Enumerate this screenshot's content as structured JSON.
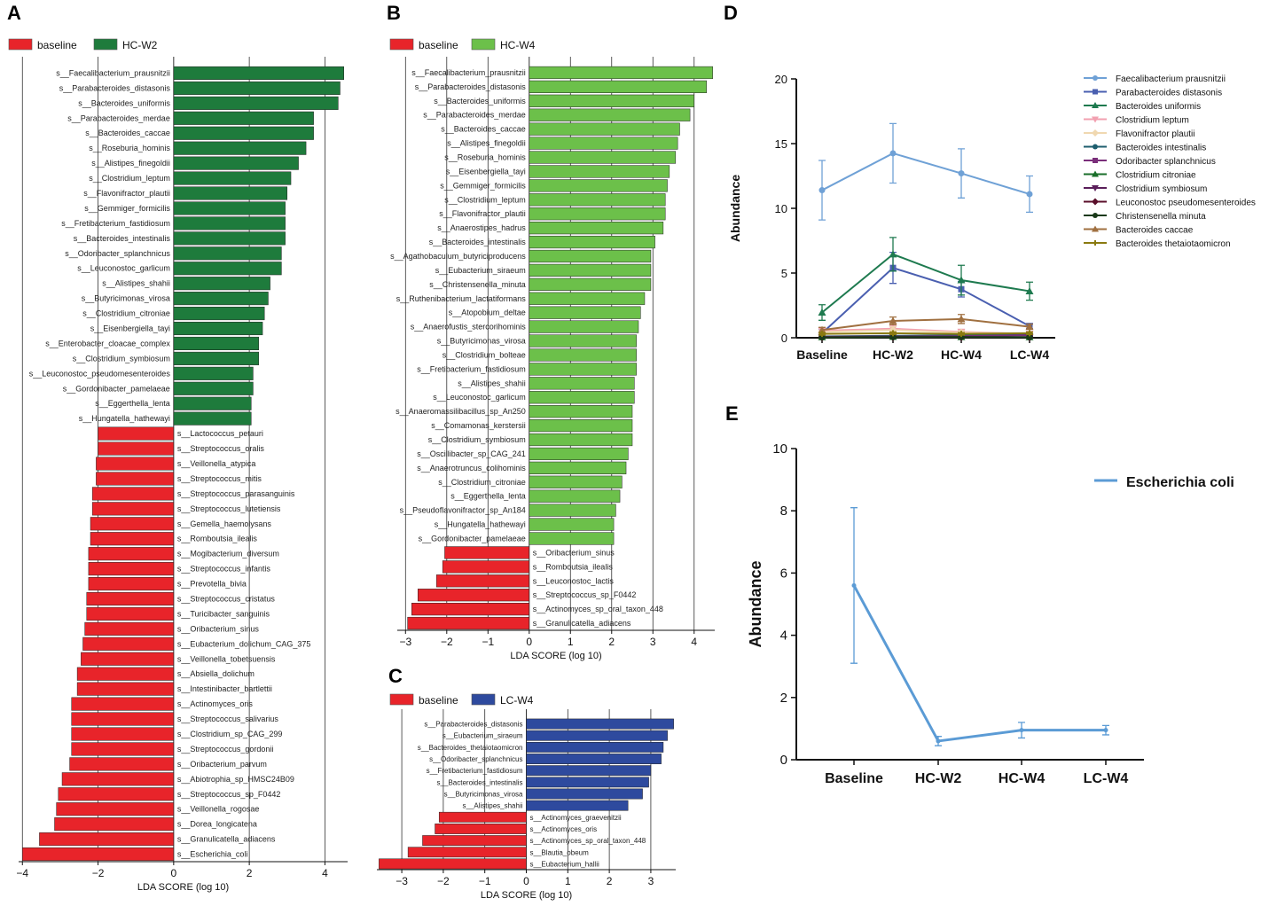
{
  "panels": {
    "A": "A",
    "B": "B",
    "C": "C",
    "D": "D",
    "E": "E"
  },
  "colors": {
    "baseline": "#e8242a",
    "hcw2": "#1e7b3c",
    "hcw4": "#6cc04a",
    "lcw4": "#2e4a9e",
    "eline": "#5b9bd5"
  },
  "chart_data": [
    {
      "id": "A",
      "type": "bar",
      "orientation": "horizontal",
      "legend": [
        "baseline",
        "HC-W2"
      ],
      "xlabel": "LDA SCORE (log 10)",
      "xlim": [
        -4.1,
        4.6
      ],
      "xticks": [
        -4,
        -2,
        0,
        2,
        4
      ],
      "pos_label": "HC-W2",
      "neg_label": "baseline",
      "bars": [
        {
          "name": "s__Faecalibacterium_prausnitzii",
          "value": 4.5
        },
        {
          "name": "s__Parabacteroides_distasonis",
          "value": 4.4
        },
        {
          "name": "s__Bacteroides_uniformis",
          "value": 4.35
        },
        {
          "name": "s__Parabacteroides_merdae",
          "value": 3.7
        },
        {
          "name": "s__Bacteroides_caccae",
          "value": 3.7
        },
        {
          "name": "s__Roseburia_hominis",
          "value": 3.5
        },
        {
          "name": "s__Alistipes_finegoldii",
          "value": 3.3
        },
        {
          "name": "s__Clostridium_leptum",
          "value": 3.1
        },
        {
          "name": "s__Flavonifractor_plautii",
          "value": 3.0
        },
        {
          "name": "s__Gemmiger_formicilis",
          "value": 2.95
        },
        {
          "name": "s__Fretibacterium_fastidiosum",
          "value": 2.95
        },
        {
          "name": "s__Bacteroides_intestinalis",
          "value": 2.95
        },
        {
          "name": "s__Odoribacter_splanchnicus",
          "value": 2.85
        },
        {
          "name": "s__Leuconostoc_garlicum",
          "value": 2.85
        },
        {
          "name": "s__Alistipes_shahii",
          "value": 2.55
        },
        {
          "name": "s__Butyricimonas_virosa",
          "value": 2.5
        },
        {
          "name": "s__Clostridium_citroniae",
          "value": 2.4
        },
        {
          "name": "s__Eisenbergiella_tayi",
          "value": 2.35
        },
        {
          "name": "s__Enterobacter_cloacae_complex",
          "value": 2.25
        },
        {
          "name": "s__Clostridium_symbiosum",
          "value": 2.25
        },
        {
          "name": "s__Leuconostoc_pseudomesenteroides",
          "value": 2.1
        },
        {
          "name": "s__Gordonibacter_pamelaeae",
          "value": 2.1
        },
        {
          "name": "s__Eggerthella_lenta",
          "value": 2.05
        },
        {
          "name": "s__Hungatella_hathewayi",
          "value": 2.05
        },
        {
          "name": "s__Lactococcus_petauri",
          "value": -2.0
        },
        {
          "name": "s__Streptococcus_oralis",
          "value": -2.0
        },
        {
          "name": "s__Veillonella_atypica",
          "value": -2.05
        },
        {
          "name": "s__Streptococcus_mitis",
          "value": -2.05
        },
        {
          "name": "s__Streptococcus_parasanguinis",
          "value": -2.15
        },
        {
          "name": "s__Streptococcus_lutetiensis",
          "value": -2.15
        },
        {
          "name": "s__Gemella_haemolysans",
          "value": -2.2
        },
        {
          "name": "s__Romboutsia_ilealis",
          "value": -2.2
        },
        {
          "name": "s__Mogibacterium_diversum",
          "value": -2.25
        },
        {
          "name": "s__Streptococcus_infantis",
          "value": -2.25
        },
        {
          "name": "s__Prevotella_bivia",
          "value": -2.25
        },
        {
          "name": "s__Streptococcus_cristatus",
          "value": -2.3
        },
        {
          "name": "s__Turicibacter_sanguinis",
          "value": -2.3
        },
        {
          "name": "s__Oribacterium_sinus",
          "value": -2.35
        },
        {
          "name": "s__Eubacterium_dolichum_CAG_375",
          "value": -2.4
        },
        {
          "name": "s__Veillonella_tobetsuensis",
          "value": -2.45
        },
        {
          "name": "s__Absiella_dolichum",
          "value": -2.55
        },
        {
          "name": "s__Intestinibacter_bartlettii",
          "value": -2.55
        },
        {
          "name": "s__Actinomyces_oris",
          "value": -2.7
        },
        {
          "name": "s__Streptococcus_salivarius",
          "value": -2.7
        },
        {
          "name": "s__Clostridium_sp_CAG_299",
          "value": -2.7
        },
        {
          "name": "s__Streptococcus_gordonii",
          "value": -2.7
        },
        {
          "name": "s__Oribacterium_parvum",
          "value": -2.75
        },
        {
          "name": "s__Abiotrophia_sp_HMSC24B09",
          "value": -2.95
        },
        {
          "name": "s__Streptococcus_sp_F0442",
          "value": -3.05
        },
        {
          "name": "s__Veillonella_rogosae",
          "value": -3.1
        },
        {
          "name": "s__Dorea_longicatena",
          "value": -3.15
        },
        {
          "name": "s__Granulicatella_adiacens",
          "value": -3.55
        },
        {
          "name": "s__Escherichia_coli",
          "value": -4.0
        }
      ]
    },
    {
      "id": "B",
      "type": "bar",
      "orientation": "horizontal",
      "legend": [
        "baseline",
        "HC-W4"
      ],
      "xlabel": "LDA SCORE (log 10)",
      "xlim": [
        -3.2,
        4.5
      ],
      "xticks": [
        -3,
        -2,
        -1,
        0,
        1,
        2,
        3,
        4
      ],
      "pos_label": "HC-W4",
      "neg_label": "baseline",
      "bars": [
        {
          "name": "s__Faecalibacterium_prausnitzii",
          "value": 4.45
        },
        {
          "name": "s__Parabacteroides_distasonis",
          "value": 4.3
        },
        {
          "name": "s__Bacteroides_uniformis",
          "value": 4.0
        },
        {
          "name": "s__Parabacteroides_merdae",
          "value": 3.9
        },
        {
          "name": "s__Bacteroides_caccae",
          "value": 3.65
        },
        {
          "name": "s__Alistipes_finegoldii",
          "value": 3.6
        },
        {
          "name": "s__Roseburia_hominis",
          "value": 3.55
        },
        {
          "name": "s__Eisenbergiella_tayi",
          "value": 3.4
        },
        {
          "name": "s__Gemmiger_formicilis",
          "value": 3.35
        },
        {
          "name": "s__Clostridium_leptum",
          "value": 3.3
        },
        {
          "name": "s__Flavonifractor_plautii",
          "value": 3.3
        },
        {
          "name": "s__Anaerostipes_hadrus",
          "value": 3.25
        },
        {
          "name": "s__Bacteroides_intestinalis",
          "value": 3.05
        },
        {
          "name": "s__Agathobaculum_butyriciproducens",
          "value": 2.95
        },
        {
          "name": "s__Eubacterium_siraeum",
          "value": 2.95
        },
        {
          "name": "s__Christensenella_minuta",
          "value": 2.95
        },
        {
          "name": "s__Ruthenibacterium_lactatiformans",
          "value": 2.8
        },
        {
          "name": "s__Atopobium_deltae",
          "value": 2.7
        },
        {
          "name": "s__Anaerofustis_stercorihominis",
          "value": 2.65
        },
        {
          "name": "s__Butyricimonas_virosa",
          "value": 2.6
        },
        {
          "name": "s__Clostridium_bolteae",
          "value": 2.6
        },
        {
          "name": "s__Fretibacterium_fastidiosum",
          "value": 2.6
        },
        {
          "name": "s__Alistipes_shahii",
          "value": 2.55
        },
        {
          "name": "s__Leuconostoc_garlicum",
          "value": 2.55
        },
        {
          "name": "s__Anaeromassilibacillus_sp_An250",
          "value": 2.5
        },
        {
          "name": "s__Comamonas_kerstersii",
          "value": 2.5
        },
        {
          "name": "s__Clostridium_symbiosum",
          "value": 2.5
        },
        {
          "name": "s__Oscillibacter_sp_CAG_241",
          "value": 2.4
        },
        {
          "name": "s__Anaerotruncus_colihominis",
          "value": 2.35
        },
        {
          "name": "s__Clostridium_citroniae",
          "value": 2.25
        },
        {
          "name": "s__Eggerthella_lenta",
          "value": 2.2
        },
        {
          "name": "s__Pseudoflavonifractor_sp_An184",
          "value": 2.1
        },
        {
          "name": "s__Hungatella_hathewayi",
          "value": 2.05
        },
        {
          "name": "s__Gordonibacter_pamelaeae",
          "value": 2.05
        },
        {
          "name": "s__Oribacterium_sinus",
          "value": -2.05
        },
        {
          "name": "s__Romboutsia_ilealis",
          "value": -2.1
        },
        {
          "name": "s__Leuconostoc_lactis",
          "value": -2.25
        },
        {
          "name": "s__Streptococcus_sp_F0442",
          "value": -2.7
        },
        {
          "name": "s__Actinomyces_sp_oral_taxon_448",
          "value": -2.85
        },
        {
          "name": "s__Granulicatella_adiacens",
          "value": -2.95
        }
      ]
    },
    {
      "id": "C",
      "type": "bar",
      "orientation": "horizontal",
      "legend": [
        "baseline",
        "LC-W4"
      ],
      "xlabel": "LDA SCORE (log 10)",
      "xlim": [
        -3.6,
        3.6
      ],
      "xticks": [
        -3,
        -2,
        -1,
        0,
        1,
        2,
        3
      ],
      "pos_label": "LC-W4",
      "neg_label": "baseline",
      "bars": [
        {
          "name": "s__Parabacteroides_distasonis",
          "value": 3.55
        },
        {
          "name": "s__Eubacterium_siraeum",
          "value": 3.4
        },
        {
          "name": "s__Bacteroides_thetaiotaomicron",
          "value": 3.3
        },
        {
          "name": "s__Odoribacter_splanchnicus",
          "value": 3.25
        },
        {
          "name": "s__Fretibacterium_fastidiosum",
          "value": 3.0
        },
        {
          "name": "s__Bacteroides_intestinalis",
          "value": 2.95
        },
        {
          "name": "s__Butyricimonas_virosa",
          "value": 2.8
        },
        {
          "name": "s__Alistipes_shahii",
          "value": 2.45
        },
        {
          "name": "s__Actinomyces_graevenitzii",
          "value": -2.1
        },
        {
          "name": "s__Actinomyces_oris",
          "value": -2.2
        },
        {
          "name": "s__Actinomyces_sp_oral_taxon_448",
          "value": -2.5
        },
        {
          "name": "s__Blautia_obeum",
          "value": -2.85
        },
        {
          "name": "s__Eubacterium_hallii",
          "value": -3.55
        }
      ]
    },
    {
      "id": "D",
      "type": "line",
      "categories": [
        "Baseline",
        "HC-W2",
        "HC-W4",
        "LC-W4"
      ],
      "ylabel": "Abundance",
      "ylim": [
        0,
        20
      ],
      "yticks": [
        0,
        5,
        10,
        15,
        20
      ],
      "series": [
        {
          "name": "Faecalibacterium prausnitzii",
          "color": "#6fa1d6",
          "marker": "circle",
          "values": [
            11.4,
            14.25,
            12.7,
            11.1
          ],
          "err": [
            2.3,
            2.3,
            1.9,
            1.4
          ]
        },
        {
          "name": "Parabacteroides distasonis",
          "color": "#4a5fb0",
          "marker": "square",
          "values": [
            0.35,
            5.4,
            3.75,
            0.9
          ],
          "err": [
            0.3,
            1.2,
            0.6,
            0.2
          ]
        },
        {
          "name": "Bacteroides uniformis",
          "color": "#1e7a4f",
          "marker": "triangle",
          "values": [
            1.95,
            6.45,
            4.45,
            3.6
          ],
          "err": [
            0.6,
            1.3,
            1.15,
            0.7
          ]
        },
        {
          "name": "Clostridium leptum",
          "color": "#f2a0b0",
          "marker": "triangle-down",
          "values": [
            0.55,
            0.7,
            0.45,
            0.3
          ],
          "err": [
            0.2,
            0.3,
            0.2,
            0.15
          ]
        },
        {
          "name": "Flavonifractor plautii",
          "color": "#f0d8b0",
          "marker": "diamond",
          "values": [
            0.45,
            0.6,
            0.4,
            0.3
          ],
          "err": [
            0.15,
            0.25,
            0.15,
            0.1
          ]
        },
        {
          "name": "Bacteroides intestinalis",
          "color": "#1d5e6e",
          "marker": "circle",
          "values": [
            0.1,
            0.15,
            0.2,
            0.25
          ],
          "err": [
            0.05,
            0.05,
            0.05,
            0.05
          ]
        },
        {
          "name": "Odoribacter splanchnicus",
          "color": "#7a2e7a",
          "marker": "square",
          "values": [
            0.08,
            0.1,
            0.12,
            0.2
          ],
          "err": [
            0.03,
            0.03,
            0.03,
            0.05
          ]
        },
        {
          "name": "Clostridium citroniae",
          "color": "#1a6e2a",
          "marker": "triangle",
          "values": [
            0.05,
            0.08,
            0.06,
            0.05
          ],
          "err": [
            0.02,
            0.03,
            0.02,
            0.02
          ]
        },
        {
          "name": "Clostridium symbiosum",
          "color": "#5a1e5a",
          "marker": "triangle-down",
          "values": [
            0.04,
            0.06,
            0.05,
            0.04
          ],
          "err": [
            0.02,
            0.02,
            0.02,
            0.02
          ]
        },
        {
          "name": "Leuconostoc pseudomesenteroides",
          "color": "#5a0e2a",
          "marker": "diamond",
          "values": [
            0.03,
            0.05,
            0.04,
            0.03
          ],
          "err": [
            0.01,
            0.02,
            0.01,
            0.01
          ]
        },
        {
          "name": "Christensenella minuta",
          "color": "#1a3a1a",
          "marker": "circle",
          "values": [
            0.02,
            0.04,
            0.05,
            0.03
          ],
          "err": [
            0.01,
            0.01,
            0.01,
            0.01
          ]
        },
        {
          "name": "Bacteroides caccae",
          "color": "#a07040",
          "marker": "triangle",
          "values": [
            0.6,
            1.3,
            1.45,
            0.85
          ],
          "err": [
            0.2,
            0.3,
            0.35,
            0.2
          ]
        },
        {
          "name": "Bacteroides thetaiotaomicron",
          "color": "#8a7a10",
          "marker": "plus",
          "values": [
            0.3,
            0.35,
            0.3,
            0.35
          ],
          "err": [
            0.1,
            0.1,
            0.1,
            0.1
          ]
        }
      ]
    },
    {
      "id": "E",
      "type": "line",
      "categories": [
        "Baseline",
        "HC-W2",
        "HC-W4",
        "LC-W4"
      ],
      "ylabel": "Abundance",
      "ylim": [
        0,
        10
      ],
      "yticks": [
        0,
        2,
        4,
        6,
        8,
        10
      ],
      "series": [
        {
          "name": "Escherichia coli",
          "color": "#5b9bd5",
          "values": [
            5.6,
            0.6,
            0.95,
            0.95
          ],
          "err": [
            2.5,
            0.15,
            0.25,
            0.15
          ]
        }
      ]
    }
  ]
}
